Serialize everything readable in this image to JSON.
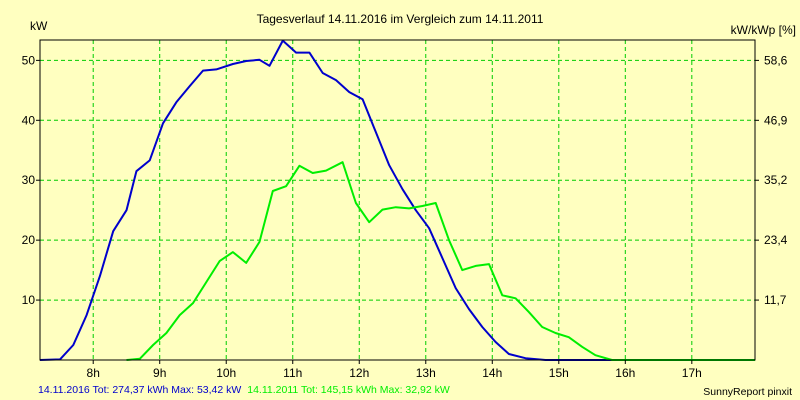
{
  "chart_data": {
    "type": "line",
    "title": "Tagesverlauf 14.11.2016 im Vergleich zum 14.11.2011",
    "ylabel_left": "kW",
    "ylabel_right": "kW/kWp [%]",
    "xlim": [
      7.2,
      17.95
    ],
    "ylim": [
      0,
      53.4
    ],
    "x_ticks": [
      {
        "x": 8,
        "label": "8h"
      },
      {
        "x": 9,
        "label": "9h"
      },
      {
        "x": 10,
        "label": "10h"
      },
      {
        "x": 11,
        "label": "11h"
      },
      {
        "x": 12,
        "label": "12h"
      },
      {
        "x": 13,
        "label": "13h"
      },
      {
        "x": 14,
        "label": "14h"
      },
      {
        "x": 15,
        "label": "15h"
      },
      {
        "x": 16,
        "label": "16h"
      },
      {
        "x": 17,
        "label": "17h"
      }
    ],
    "y_ticks_left": [
      {
        "y": 10,
        "label": "10"
      },
      {
        "y": 20,
        "label": "20"
      },
      {
        "y": 30,
        "label": "30"
      },
      {
        "y": 40,
        "label": "40"
      },
      {
        "y": 50,
        "label": "50"
      }
    ],
    "y_ticks_right": [
      {
        "y": 10,
        "label": "11,7"
      },
      {
        "y": 20,
        "label": "23,4"
      },
      {
        "y": 30,
        "label": "35,2"
      },
      {
        "y": 40,
        "label": "46,9"
      },
      {
        "y": 50,
        "label": "58,6"
      }
    ],
    "grid": true,
    "series": [
      {
        "name": "14.11.2016",
        "color": "#0000cc",
        "points": [
          [
            7.2,
            0.0
          ],
          [
            7.5,
            0.1
          ],
          [
            7.7,
            2.5
          ],
          [
            7.9,
            7.5
          ],
          [
            8.1,
            14
          ],
          [
            8.3,
            21.5
          ],
          [
            8.5,
            25
          ],
          [
            8.65,
            31.5
          ],
          [
            8.85,
            33.3
          ],
          [
            9.05,
            39.5
          ],
          [
            9.25,
            43
          ],
          [
            9.45,
            45.7
          ],
          [
            9.65,
            48.3
          ],
          [
            9.85,
            48.5
          ],
          [
            10.1,
            49.4
          ],
          [
            10.3,
            49.9
          ],
          [
            10.5,
            50.1
          ],
          [
            10.65,
            49.1
          ],
          [
            10.85,
            53.3
          ],
          [
            11.05,
            51.3
          ],
          [
            11.25,
            51.3
          ],
          [
            11.45,
            47.9
          ],
          [
            11.65,
            46.7
          ],
          [
            11.85,
            44.7
          ],
          [
            12.05,
            43.5
          ],
          [
            12.25,
            38
          ],
          [
            12.45,
            32.5
          ],
          [
            12.65,
            28.5
          ],
          [
            12.85,
            25
          ],
          [
            13.05,
            22
          ],
          [
            13.25,
            17
          ],
          [
            13.45,
            12
          ],
          [
            13.65,
            8.5
          ],
          [
            13.85,
            5.5
          ],
          [
            14.05,
            3.0
          ],
          [
            14.25,
            1.0
          ],
          [
            14.5,
            0.3
          ],
          [
            14.8,
            0.0
          ],
          [
            15.8,
            0.0
          ]
        ]
      },
      {
        "name": "14.11.2011",
        "color": "#00ee00",
        "points": [
          [
            8.5,
            0.0
          ],
          [
            8.7,
            0.2
          ],
          [
            8.9,
            2.5
          ],
          [
            9.1,
            4.5
          ],
          [
            9.3,
            7.5
          ],
          [
            9.5,
            9.5
          ],
          [
            9.7,
            13
          ],
          [
            9.9,
            16.5
          ],
          [
            10.1,
            18
          ],
          [
            10.3,
            16.2
          ],
          [
            10.5,
            19.7
          ],
          [
            10.7,
            28.2
          ],
          [
            10.9,
            29
          ],
          [
            11.1,
            32.4
          ],
          [
            11.3,
            31.2
          ],
          [
            11.5,
            31.6
          ],
          [
            11.75,
            33.0
          ],
          [
            11.95,
            26.2
          ],
          [
            12.15,
            23
          ],
          [
            12.35,
            25.1
          ],
          [
            12.55,
            25.5
          ],
          [
            12.75,
            25.3
          ],
          [
            12.95,
            25.7
          ],
          [
            13.15,
            26.2
          ],
          [
            13.35,
            20
          ],
          [
            13.55,
            15
          ],
          [
            13.75,
            15.7
          ],
          [
            13.95,
            16
          ],
          [
            14.15,
            10.8
          ],
          [
            14.35,
            10.3
          ],
          [
            14.55,
            8
          ],
          [
            14.75,
            5.5
          ],
          [
            14.95,
            4.5
          ],
          [
            15.15,
            3.8
          ],
          [
            15.35,
            2.2
          ],
          [
            15.55,
            0.8
          ],
          [
            15.8,
            0.0
          ],
          [
            17.95,
            0.0
          ]
        ]
      }
    ]
  },
  "footer": {
    "series1_summary": "14.11.2016 Tot: 274,37 kWh Max: 53,42 kW",
    "series2_summary": "14.11.2011 Tot: 145,15 kWh Max: 32,92 kW",
    "credit": "SunnyReport pinxit"
  },
  "colors": {
    "background": "#ffffc0",
    "grid": "#00cc00",
    "series1": "#0000cc",
    "series2": "#00ee00"
  }
}
